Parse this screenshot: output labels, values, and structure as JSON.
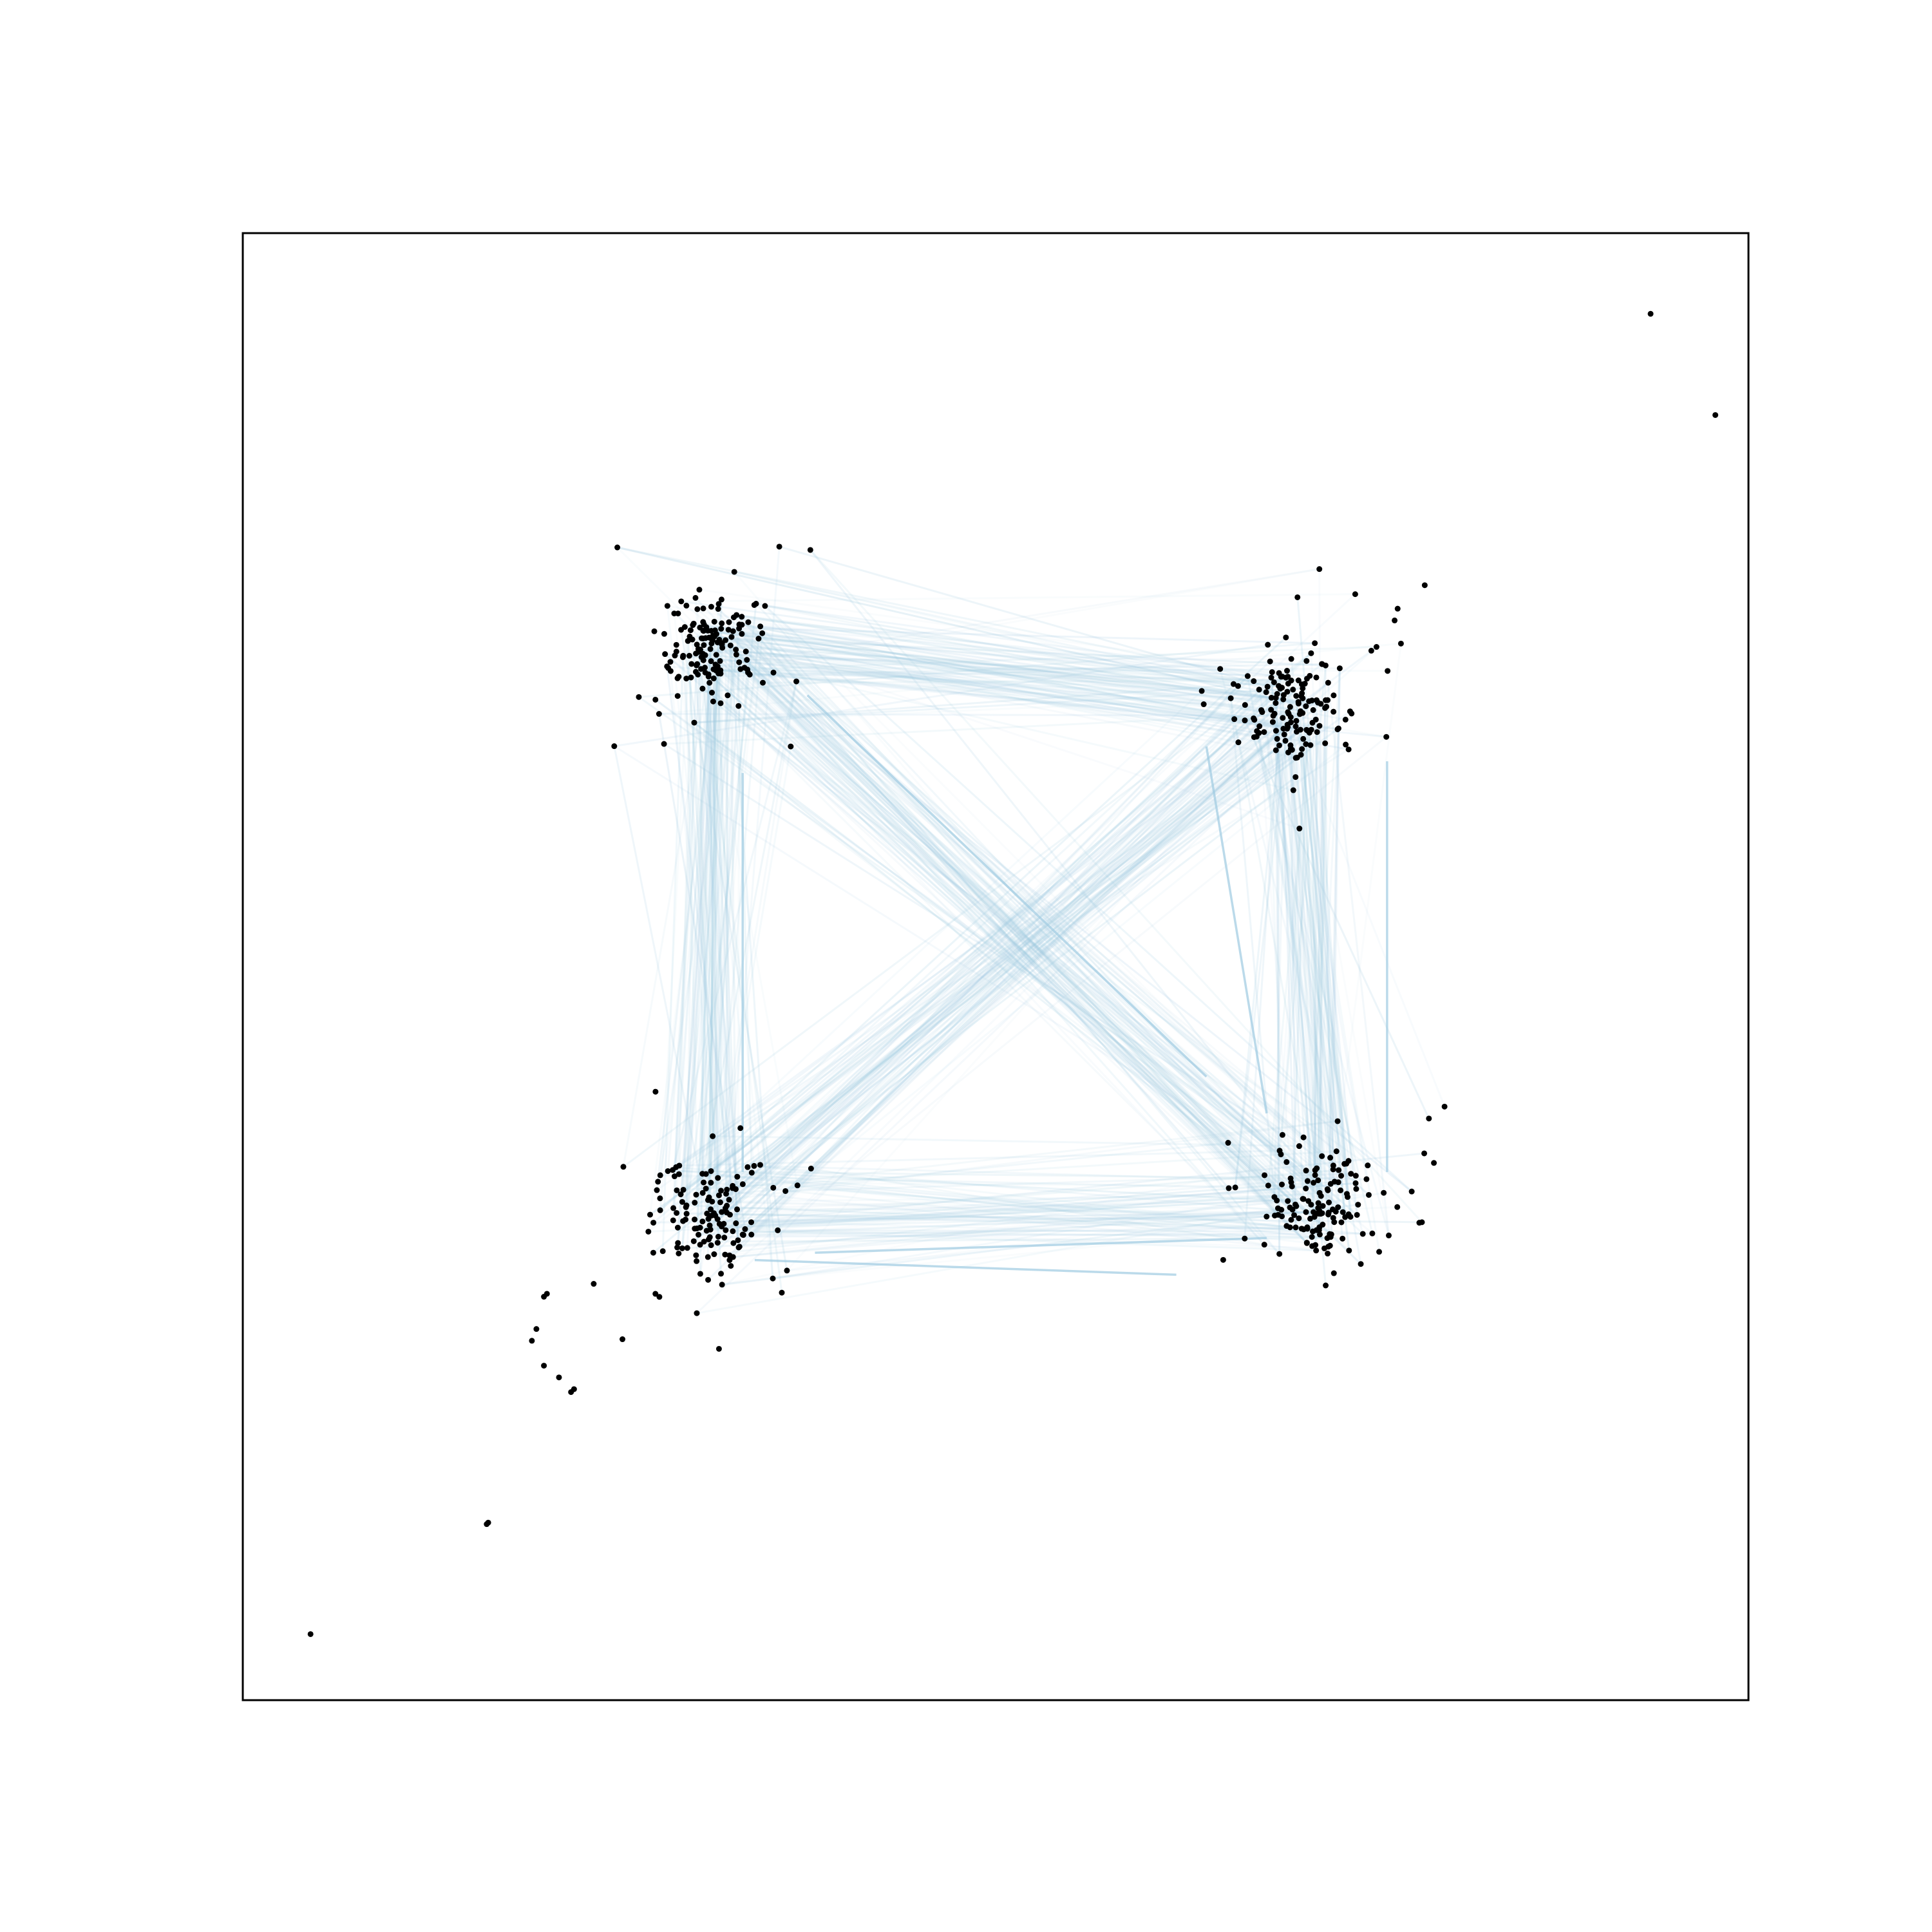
{
  "chart_data": {
    "type": "network",
    "title": "",
    "xlabel": "",
    "ylabel": "",
    "axes_ticks": false,
    "grid": false,
    "node_color": "#000000",
    "edge_color": "#9ecae1",
    "xlim": [
      0,
      1000
    ],
    "ylim": [
      0,
      1000
    ],
    "clusters": [
      {
        "name": "top-left",
        "center": [
          310,
          720
        ],
        "count": 150,
        "spread": [
          30,
          30
        ]
      },
      {
        "name": "top-right",
        "center": [
          700,
          675
        ],
        "count": 150,
        "spread": [
          32,
          36
        ]
      },
      {
        "name": "bottom-left",
        "center": [
          310,
          330
        ],
        "count": 140,
        "spread": [
          28,
          32
        ]
      },
      {
        "name": "bottom-right",
        "center": [
          715,
          335
        ],
        "count": 150,
        "spread": [
          30,
          32
        ]
      }
    ],
    "isolated_nodes": [
      [
        935,
        945
      ],
      [
        978,
        876
      ],
      [
        785,
        760
      ],
      [
        767,
        744
      ],
      [
        765,
        736
      ],
      [
        202,
        277
      ],
      [
        200,
        275
      ],
      [
        195,
        253
      ],
      [
        192,
        245
      ],
      [
        200,
        228
      ],
      [
        210,
        220
      ],
      [
        220,
        212
      ],
      [
        218,
        210
      ],
      [
        162,
        120
      ],
      [
        163,
        121
      ],
      [
        45,
        45
      ]
    ],
    "edge_count": 520,
    "edge_opacity_range": [
      0.05,
      0.3
    ],
    "highlighted_edges": [
      [
        [
          375,
          685
        ],
        [
          640,
          425
        ]
      ],
      [
        [
          332,
          632
        ],
        [
          332,
          360
        ]
      ],
      [
        [
          380,
          305
        ],
        [
          680,
          315
        ]
      ],
      [
        [
          340,
          300
        ],
        [
          620,
          290
        ]
      ],
      [
        [
          640,
          650
        ],
        [
          680,
          400
        ]
      ],
      [
        [
          760,
          640
        ],
        [
          760,
          360
        ]
      ]
    ]
  }
}
